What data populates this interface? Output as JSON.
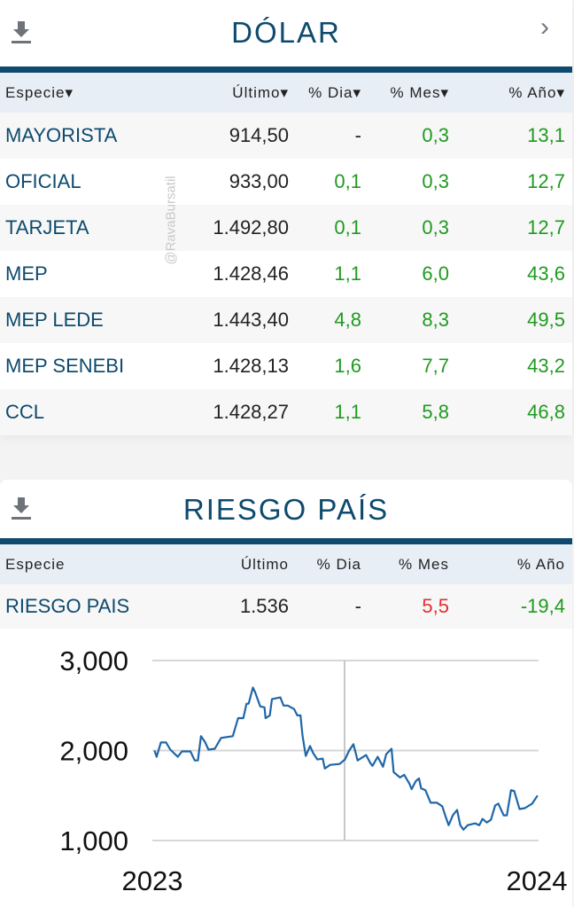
{
  "dolar": {
    "title": "DÓLAR",
    "watermark": "@RavaBursatil",
    "headers": [
      "Especie▾",
      "Último▾",
      "% Dia▾",
      "% Mes▾",
      "% Año▾"
    ],
    "rows": [
      [
        "MAYORISTA",
        "914,50",
        "-",
        "0,3",
        "13,1"
      ],
      [
        "OFICIAL",
        "933,00",
        "0,1",
        "0,3",
        "12,7"
      ],
      [
        "TARJETA",
        "1.492,80",
        "0,1",
        "0,3",
        "12,7"
      ],
      [
        "MEP",
        "1.428,46",
        "1,1",
        "6,0",
        "43,6"
      ],
      [
        "MEP LEDE",
        "1.443,40",
        "4,8",
        "8,3",
        "49,5"
      ],
      [
        "MEP SENEBI",
        "1.428,13",
        "1,6",
        "7,7",
        "43,2"
      ],
      [
        "CCL",
        "1.428,27",
        "1,1",
        "5,8",
        "46,8"
      ]
    ]
  },
  "riesgo": {
    "title": "RIESGO PAÍS",
    "headers": [
      "Especie",
      "Último",
      "% Dia",
      "% Mes",
      "% Año"
    ],
    "row": [
      "RIESGO PAIS",
      "1.536",
      "-",
      "5,5",
      "-19,4"
    ]
  },
  "colors": {
    "brand": "#0d4a6e",
    "positive": "#1f9a1f",
    "negative": "#e03030",
    "line": "#1f66a8"
  },
  "chart_data": {
    "type": "line",
    "x_tick_labels": [
      "2023",
      "2024"
    ],
    "y_tick_labels": [
      "3,000",
      "2,000",
      "1,000"
    ],
    "yticks": [
      3000,
      2000,
      1000
    ],
    "ylim": [
      1000,
      3000
    ],
    "xlim": [
      "2023-01-01",
      "2024-01-01"
    ],
    "grid": true,
    "series": [
      {
        "points": [
          [
            "2023-01-03",
            2000
          ],
          [
            "2023-01-05",
            1930
          ],
          [
            "2023-01-09",
            2090
          ],
          [
            "2023-01-14",
            2090
          ],
          [
            "2023-01-18",
            2010
          ],
          [
            "2023-01-25",
            1930
          ],
          [
            "2023-01-29",
            1990
          ],
          [
            "2023-02-06",
            1990
          ],
          [
            "2023-02-10",
            1890
          ],
          [
            "2023-02-13",
            1890
          ],
          [
            "2023-02-16",
            2160
          ],
          [
            "2023-02-20",
            2090
          ],
          [
            "2023-02-23",
            2010
          ],
          [
            "2023-03-01",
            2020
          ],
          [
            "2023-03-07",
            2140
          ],
          [
            "2023-03-18",
            2160
          ],
          [
            "2023-03-23",
            2360
          ],
          [
            "2023-03-28",
            2360
          ],
          [
            "2023-03-31",
            2520
          ],
          [
            "2023-04-02",
            2520
          ],
          [
            "2023-04-06",
            2700
          ],
          [
            "2023-04-08",
            2650
          ],
          [
            "2023-04-13",
            2490
          ],
          [
            "2023-04-17",
            2480
          ],
          [
            "2023-04-18",
            2360
          ],
          [
            "2023-04-22",
            2390
          ],
          [
            "2023-04-24",
            2570
          ],
          [
            "2023-05-02",
            2590
          ],
          [
            "2023-05-05",
            2500
          ],
          [
            "2023-05-09",
            2500
          ],
          [
            "2023-05-15",
            2460
          ],
          [
            "2023-05-18",
            2390
          ],
          [
            "2023-05-21",
            2390
          ],
          [
            "2023-05-23",
            2160
          ],
          [
            "2023-05-26",
            1940
          ],
          [
            "2023-05-30",
            2050
          ],
          [
            "2023-06-02",
            1970
          ],
          [
            "2023-06-06",
            1900
          ],
          [
            "2023-06-11",
            1910
          ],
          [
            "2023-06-13",
            1800
          ],
          [
            "2023-06-18",
            1840
          ],
          [
            "2023-06-27",
            1850
          ],
          [
            "2023-07-02",
            1900
          ],
          [
            "2023-07-06",
            2000
          ],
          [
            "2023-07-10",
            2070
          ],
          [
            "2023-07-14",
            1890
          ],
          [
            "2023-07-22",
            1950
          ],
          [
            "2023-07-26",
            1860
          ],
          [
            "2023-07-28",
            1830
          ],
          [
            "2023-08-02",
            1930
          ],
          [
            "2023-08-07",
            1820
          ],
          [
            "2023-08-10",
            1960
          ],
          [
            "2023-08-15",
            2020
          ],
          [
            "2023-08-17",
            1760
          ],
          [
            "2023-08-23",
            1700
          ],
          [
            "2023-08-27",
            1730
          ],
          [
            "2023-09-01",
            1630
          ],
          [
            "2023-09-03",
            1570
          ],
          [
            "2023-09-07",
            1660
          ],
          [
            "2023-09-10",
            1690
          ],
          [
            "2023-09-12",
            1580
          ],
          [
            "2023-09-16",
            1560
          ],
          [
            "2023-09-21",
            1420
          ],
          [
            "2023-09-27",
            1420
          ],
          [
            "2023-10-02",
            1380
          ],
          [
            "2023-10-05",
            1270
          ],
          [
            "2023-10-08",
            1170
          ],
          [
            "2023-10-12",
            1280
          ],
          [
            "2023-10-16",
            1340
          ],
          [
            "2023-10-19",
            1170
          ],
          [
            "2023-10-22",
            1120
          ],
          [
            "2023-10-26",
            1170
          ],
          [
            "2023-11-02",
            1190
          ],
          [
            "2023-11-06",
            1170
          ],
          [
            "2023-11-09",
            1240
          ],
          [
            "2023-11-13",
            1200
          ],
          [
            "2023-11-17",
            1230
          ],
          [
            "2023-11-21",
            1390
          ],
          [
            "2023-11-24",
            1410
          ],
          [
            "2023-11-29",
            1280
          ],
          [
            "2023-12-02",
            1280
          ],
          [
            "2023-12-06",
            1560
          ],
          [
            "2023-12-09",
            1550
          ],
          [
            "2023-12-14",
            1350
          ],
          [
            "2023-12-19",
            1360
          ],
          [
            "2023-12-26",
            1410
          ],
          [
            "2023-12-31",
            1500
          ]
        ]
      }
    ]
  }
}
